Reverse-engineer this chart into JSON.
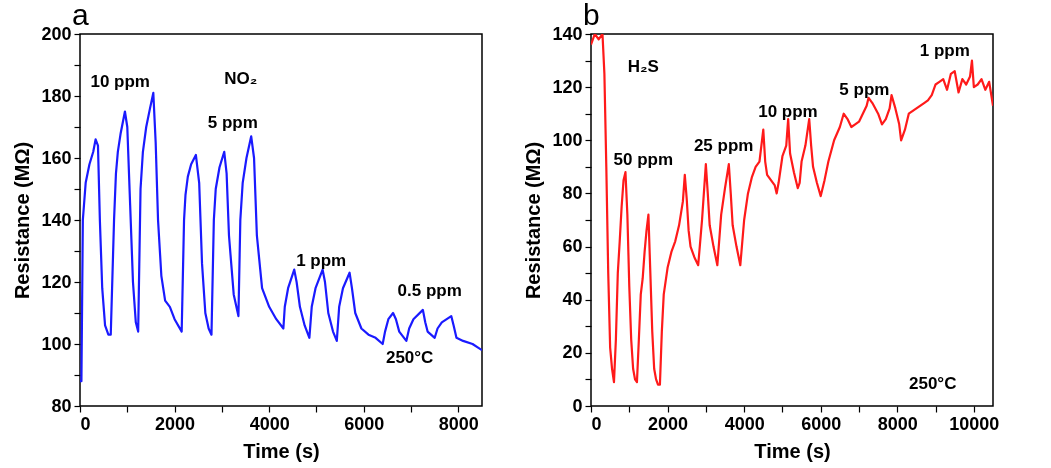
{
  "chart_data": [
    {
      "type": "line",
      "title": "a",
      "xlabel": "Time (s)",
      "ylabel": "Resistance (MΩ)",
      "x": [
        0,
        30,
        60,
        120,
        200,
        280,
        330,
        380,
        420,
        470,
        530,
        600,
        650,
        720,
        760,
        800,
        860,
        950,
        1000,
        1060,
        1120,
        1180,
        1230,
        1280,
        1330,
        1400,
        1480,
        1550,
        1600,
        1650,
        1720,
        1800,
        1900,
        2000,
        2150,
        2200,
        2230,
        2280,
        2350,
        2450,
        2520,
        2580,
        2650,
        2720,
        2780,
        2830,
        2870,
        2950,
        3050,
        3100,
        3150,
        3250,
        3350,
        3390,
        3440,
        3520,
        3620,
        3680,
        3740,
        3850,
        4000,
        4150,
        4300,
        4330,
        4400,
        4530,
        4580,
        4650,
        4750,
        4850,
        4900,
        4980,
        5130,
        5180,
        5250,
        5350,
        5430,
        5480,
        5560,
        5700,
        5750,
        5820,
        5950,
        6100,
        6250,
        6400,
        6450,
        6520,
        6620,
        6680,
        6750,
        6900,
        6960,
        7050,
        7250,
        7300,
        7350,
        7500,
        7560,
        7650,
        7850,
        7900,
        7960,
        8100,
        8300,
        8500
      ],
      "series": [
        {
          "color": "#1a1aff",
          "values": [
            88,
            88,
            140,
            152,
            158,
            162,
            166,
            164,
            140,
            118,
            106,
            103,
            103,
            140,
            155,
            162,
            168,
            175,
            170,
            145,
            120,
            107,
            104,
            150,
            162,
            170,
            176,
            181,
            165,
            140,
            122,
            114,
            112,
            108,
            104,
            140,
            148,
            154,
            158,
            161,
            152,
            126,
            110,
            105,
            103,
            140,
            150,
            157,
            162,
            155,
            135,
            116,
            109,
            140,
            152,
            160,
            167,
            160,
            135,
            118,
            112,
            108,
            105,
            112,
            118,
            124,
            120,
            112,
            106,
            102,
            112,
            118,
            124,
            120,
            110,
            104,
            101,
            112,
            118,
            123,
            118,
            110,
            105,
            103,
            102,
            100,
            104,
            108,
            110,
            108,
            104,
            101,
            105,
            108,
            111,
            107,
            104,
            102,
            105,
            107,
            109,
            106,
            102,
            101,
            100,
            98
          ]
        }
      ],
      "xlim": [
        0,
        8500
      ],
      "ylim": [
        80,
        200
      ],
      "xticks": [
        0,
        {
          "value": 1000,
          "label": null
        },
        2000,
        {
          "value": 3000,
          "label": null
        },
        4000,
        {
          "value": 5000,
          "label": null
        },
        6000,
        {
          "value": 7000,
          "label": null
        },
        8000
      ],
      "yticks": [
        80,
        {
          "value": 90,
          "label": null
        },
        100,
        {
          "value": 110,
          "label": null
        },
        120,
        {
          "value": 130,
          "label": null
        },
        140,
        {
          "value": 150,
          "label": null
        },
        160,
        {
          "value": 170,
          "label": null
        },
        180,
        {
          "value": 190,
          "label": null
        },
        200
      ],
      "annotations": [
        "10 ppm",
        "NO₂",
        "5 ppm",
        "1 ppm",
        "0.5 ppm",
        "250°C"
      ]
    },
    {
      "type": "line",
      "title": "b",
      "xlabel": "Time (s)",
      "ylabel": "Resistance (MΩ)",
      "x": [
        0,
        100,
        200,
        300,
        350,
        400,
        450,
        500,
        550,
        600,
        650,
        700,
        750,
        800,
        850,
        900,
        950,
        1000,
        1050,
        1100,
        1150,
        1200,
        1250,
        1300,
        1350,
        1400,
        1450,
        1500,
        1550,
        1600,
        1650,
        1700,
        1750,
        1800,
        1850,
        1900,
        2000,
        2100,
        2200,
        2300,
        2400,
        2450,
        2500,
        2550,
        2600,
        2700,
        2800,
        2900,
        3000,
        3050,
        3100,
        3200,
        3300,
        3400,
        3500,
        3600,
        3650,
        3700,
        3800,
        3900,
        4000,
        4100,
        4200,
        4300,
        4400,
        4500,
        4550,
        4600,
        4700,
        4800,
        4850,
        4900,
        5000,
        5100,
        5150,
        5200,
        5300,
        5400,
        5450,
        5500,
        5600,
        5700,
        5750,
        5800,
        5900,
        6000,
        6100,
        6200,
        6350,
        6500,
        6600,
        6700,
        6800,
        6900,
        7000,
        7100,
        7200,
        7250,
        7350,
        7500,
        7600,
        7700,
        7800,
        7850,
        7950,
        8050,
        8100,
        8200,
        8300,
        8500,
        8700,
        8800,
        8900,
        9000,
        9100,
        9200,
        9300,
        9400,
        9500,
        9600,
        9700,
        9800,
        9900,
        9950,
        10000,
        10100,
        10200,
        10300,
        10400,
        10500
      ],
      "series": [
        {
          "color": "#ff1a1a",
          "values": [
            136,
            140,
            138,
            140,
            125,
            90,
            50,
            22,
            14,
            9,
            25,
            50,
            62,
            75,
            85,
            88,
            72,
            45,
            25,
            14,
            10,
            9,
            25,
            42,
            48,
            58,
            66,
            72,
            50,
            28,
            14,
            10,
            8,
            8,
            28,
            42,
            52,
            58,
            62,
            68,
            77,
            87,
            78,
            66,
            60,
            56,
            53,
            70,
            91,
            80,
            68,
            60,
            53,
            72,
            82,
            91,
            80,
            68,
            60,
            53,
            70,
            80,
            86,
            90,
            92,
            104,
            92,
            87,
            85,
            83,
            80,
            84,
            94,
            98,
            108,
            95,
            88,
            82,
            84,
            92,
            98,
            108,
            98,
            90,
            84,
            79,
            85,
            92,
            100,
            105,
            110,
            108,
            105,
            106,
            107,
            110,
            113,
            116,
            114,
            110,
            106,
            108,
            112,
            117,
            112,
            106,
            100,
            104,
            110,
            112,
            114,
            115,
            117,
            121,
            122,
            123,
            119,
            125,
            126,
            118,
            123,
            121,
            124,
            130,
            120,
            121,
            123,
            119,
            122,
            113
          ]
        }
      ],
      "xlim": [
        0,
        10500
      ],
      "ylim": [
        0,
        140
      ],
      "xticks": [
        0,
        {
          "value": 1000,
          "label": null
        },
        2000,
        {
          "value": 3000,
          "label": null
        },
        4000,
        {
          "value": 5000,
          "label": null
        },
        6000,
        {
          "value": 7000,
          "label": null
        },
        8000,
        {
          "value": 9000,
          "label": null
        },
        10000
      ],
      "yticks": [
        0,
        {
          "value": 10,
          "label": null
        },
        20,
        {
          "value": 30,
          "label": null
        },
        40,
        {
          "value": 50,
          "label": null
        },
        60,
        {
          "value": 70,
          "label": null
        },
        80,
        {
          "value": 90,
          "label": null
        },
        100,
        {
          "value": 110,
          "label": null
        },
        120,
        {
          "value": 130,
          "label": null
        },
        140
      ],
      "annotations": [
        "H₂S",
        "50 ppm",
        "25 ppm",
        "10 ppm",
        "5 ppm",
        "1 ppm",
        "250°C"
      ]
    }
  ]
}
